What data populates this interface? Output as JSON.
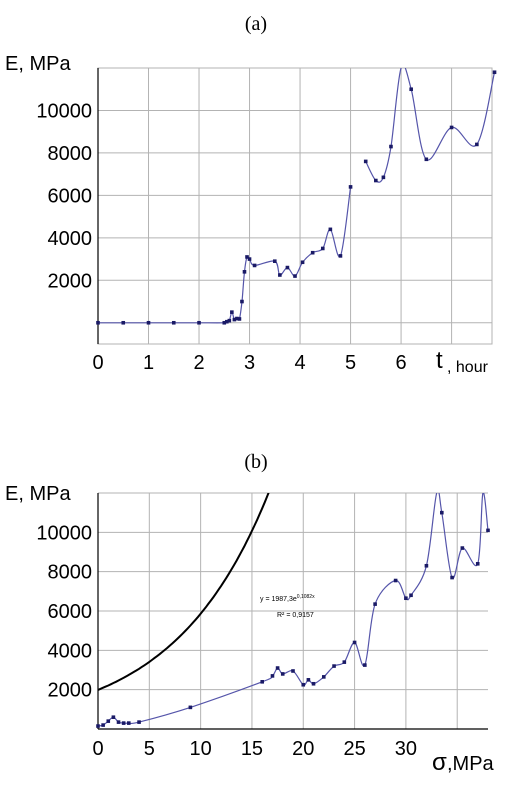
{
  "chart_data": [
    {
      "type": "line",
      "panel_label": "(a)",
      "ylabel": "E, MPa",
      "xlabel_main": "t",
      "xlabel_unit": ", hour",
      "xlim": [
        0,
        7.8
      ],
      "ylim": [
        -1000,
        12000
      ],
      "xticks": [
        0,
        1,
        2,
        3,
        4,
        5,
        6
      ],
      "yticks": [
        2000,
        4000,
        6000,
        8000,
        10000
      ],
      "grid": true,
      "series": [
        {
          "segments": [
            [
              [
                0,
                0
              ],
              [
                0.5,
                0
              ],
              [
                1,
                0
              ],
              [
                1.5,
                0
              ],
              [
                2,
                0
              ],
              [
                2.5,
                0
              ],
              [
                2.55,
                50
              ],
              [
                2.6,
                100
              ],
              [
                2.65,
                500
              ],
              [
                2.7,
                150
              ],
              [
                2.75,
                200
              ],
              [
                2.8,
                180
              ],
              [
                2.85,
                1000
              ],
              [
                2.9,
                2400
              ],
              [
                2.95,
                3100
              ],
              [
                3.0,
                3000
              ],
              [
                3.1,
                2700
              ],
              [
                3.5,
                2900
              ],
              [
                3.6,
                2250
              ],
              [
                3.75,
                2600
              ],
              [
                3.9,
                2200
              ],
              [
                4.05,
                2850
              ],
              [
                4.25,
                3300
              ],
              [
                4.45,
                3500
              ],
              [
                4.6,
                4400
              ],
              [
                4.8,
                3150
              ],
              [
                5.0,
                6400
              ]
            ],
            [
              [
                5.3,
                7600
              ],
              [
                5.5,
                6700
              ],
              [
                5.65,
                6850
              ],
              [
                5.8,
                8300
              ],
              [
                6.0,
                12000
              ],
              [
                6.2,
                11000
              ],
              [
                6.5,
                7700
              ],
              [
                7.0,
                9200
              ],
              [
                7.5,
                8400
              ],
              [
                7.85,
                11800
              ]
            ]
          ]
        }
      ]
    },
    {
      "type": "line",
      "panel_label": "(b)",
      "ylabel": "E, MPa",
      "xlabel_main": "σ",
      "xlabel_unit": ",MPa",
      "xlim": [
        0,
        38
      ],
      "ylim": [
        0,
        12000
      ],
      "xticks": [
        0,
        5,
        10,
        15,
        20,
        25,
        30
      ],
      "yticks": [
        2000,
        4000,
        6000,
        8000,
        10000
      ],
      "grid": true,
      "series": [
        {
          "points": [
            [
              0,
              150
            ],
            [
              0.5,
              200
            ],
            [
              1,
              400
            ],
            [
              1.5,
              600
            ],
            [
              2,
              350
            ],
            [
              2.5,
              300
            ],
            [
              3,
              300
            ],
            [
              4,
              350
            ],
            [
              9,
              1100
            ],
            [
              16,
              2400
            ],
            [
              17,
              2700
            ],
            [
              17.5,
              3100
            ],
            [
              18,
              2800
            ],
            [
              19,
              2950
            ],
            [
              20,
              2250
            ],
            [
              20.5,
              2500
            ],
            [
              21,
              2300
            ],
            [
              22,
              2650
            ],
            [
              23,
              3200
            ],
            [
              24,
              3400
            ],
            [
              25,
              4400
            ],
            [
              26,
              3250
            ],
            [
              27,
              6350
            ],
            [
              29,
              7550
            ],
            [
              30,
              6650
            ],
            [
              30.5,
              6800
            ],
            [
              32,
              8300
            ],
            [
              33,
              12000
            ],
            [
              33.5,
              11000
            ],
            [
              34.5,
              7700
            ],
            [
              35.5,
              9200
            ],
            [
              37,
              8400
            ],
            [
              37.5,
              12000
            ],
            [
              38,
              10100
            ]
          ]
        }
      ],
      "trendline": {
        "equation": "y = 1987,3e",
        "exponent": "0,1082x",
        "r_squared": "R² = 0,9157",
        "a": 1987.3,
        "b": 0.1082
      }
    }
  ]
}
